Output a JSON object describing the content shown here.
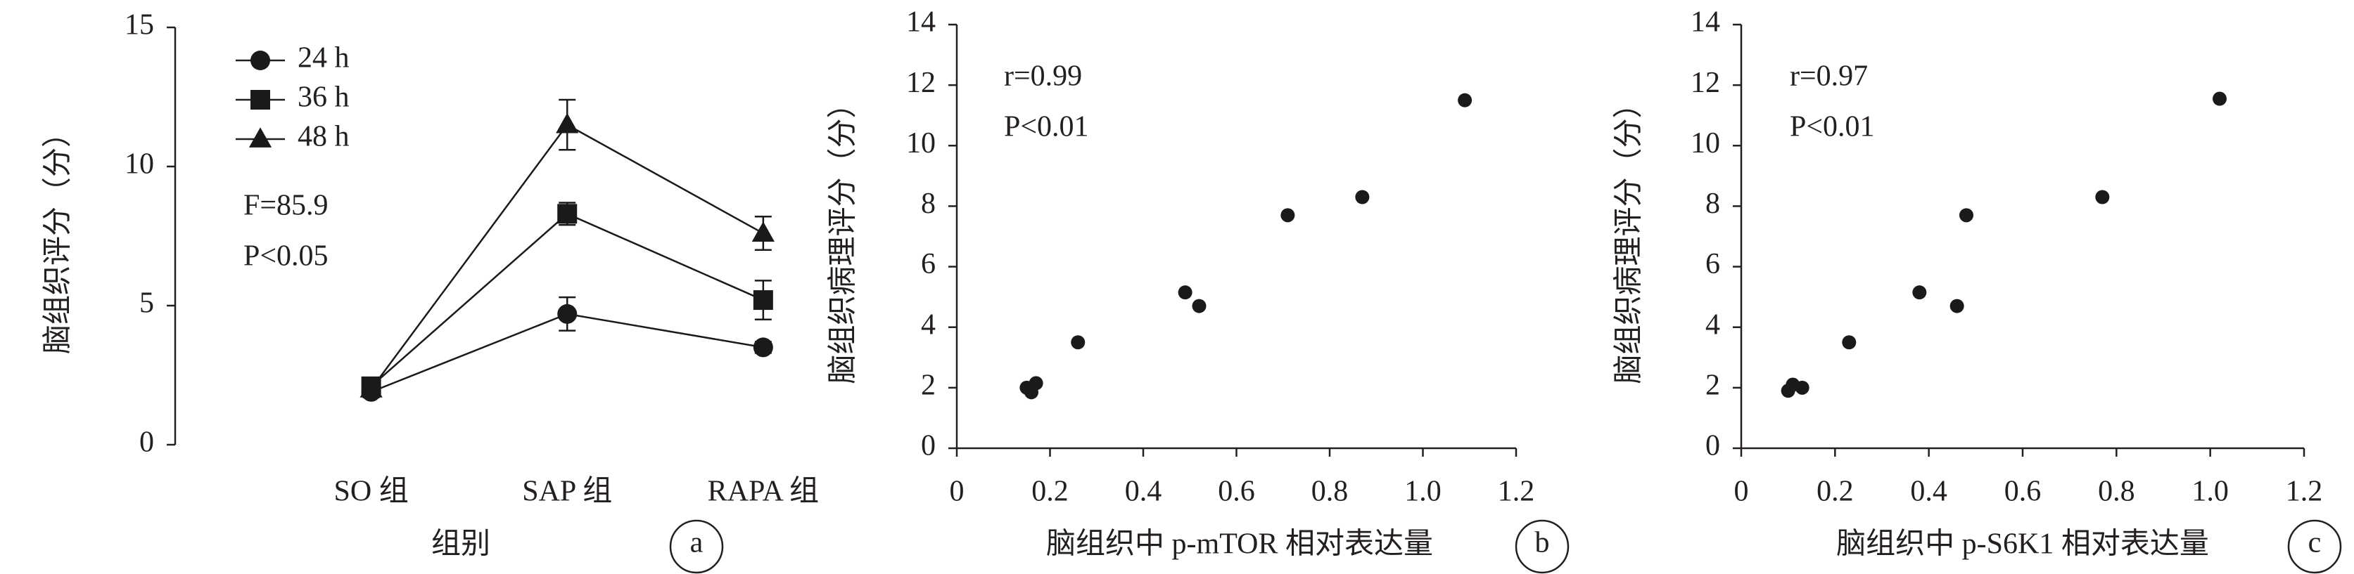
{
  "chart_data": [
    {
      "type": "line",
      "panel": "a",
      "x_label": "组别",
      "y_label": "脑组织评分（分）",
      "categories": [
        "SO 组",
        "SAP 组",
        "RAPA 组"
      ],
      "series": [
        {
          "name": "24 h",
          "color": "#1a1a1a",
          "marker": "circle",
          "values": [
            1.9,
            4.7,
            3.5
          ],
          "errors": [
            0.2,
            0.6,
            0.2
          ]
        },
        {
          "name": "36 h",
          "color": "#1a1a1a",
          "marker": "square",
          "values": [
            2.1,
            8.3,
            5.2
          ],
          "errors": [
            0.2,
            0.4,
            0.7
          ]
        },
        {
          "name": "48 h",
          "color": "#1a1a1a",
          "marker": "triangle",
          "values": [
            2.0,
            11.5,
            7.6
          ],
          "errors": [
            0.1,
            0.9,
            0.6
          ]
        }
      ],
      "ylim": [
        0,
        15
      ],
      "yticks": [
        0,
        5,
        10,
        15
      ],
      "annotations": [
        "F=85.9",
        "P<0.05"
      ]
    },
    {
      "type": "scatter",
      "panel": "b",
      "x_label": "脑组织中 p-mTOR 相对表达量",
      "y_label": "脑组织病理评分（分）",
      "color": "#1a1a1a",
      "x": [
        0.15,
        0.16,
        0.17,
        0.26,
        0.49,
        0.52,
        0.71,
        0.87,
        1.09
      ],
      "values": [
        2.0,
        1.85,
        2.15,
        3.5,
        5.15,
        4.7,
        7.7,
        8.3,
        11.5
      ],
      "xlim": [
        0,
        1.2
      ],
      "xticks": [
        0,
        0.2,
        0.4,
        0.6,
        0.8,
        {
          "value": 1,
          "label": "1.0"
        },
        1.2
      ],
      "ylim": [
        0,
        14
      ],
      "yticks": [
        0,
        2,
        4,
        6,
        8,
        10,
        12,
        14
      ],
      "annotations": [
        "r=0.99",
        "P<0.01"
      ]
    },
    {
      "type": "scatter",
      "panel": "c",
      "x_label": "脑组织中 p-S6K1 相对表达量",
      "y_label": "脑组织病理评分（分）",
      "color": "#1a1a1a",
      "x": [
        0.1,
        0.11,
        0.13,
        0.23,
        0.38,
        0.46,
        0.48,
        0.77,
        1.02
      ],
      "values": [
        1.9,
        2.1,
        2.0,
        3.5,
        5.15,
        4.7,
        7.7,
        8.3,
        11.55
      ],
      "xlim": [
        0,
        1.2
      ],
      "xticks": [
        0,
        0.2,
        0.4,
        0.6,
        0.8,
        {
          "value": 1,
          "label": "1.0"
        },
        1.2
      ],
      "ylim": [
        0,
        14
      ],
      "yticks": [
        0,
        2,
        4,
        6,
        8,
        10,
        12,
        14
      ],
      "annotations": [
        "r=0.97",
        "P<0.01"
      ]
    }
  ]
}
